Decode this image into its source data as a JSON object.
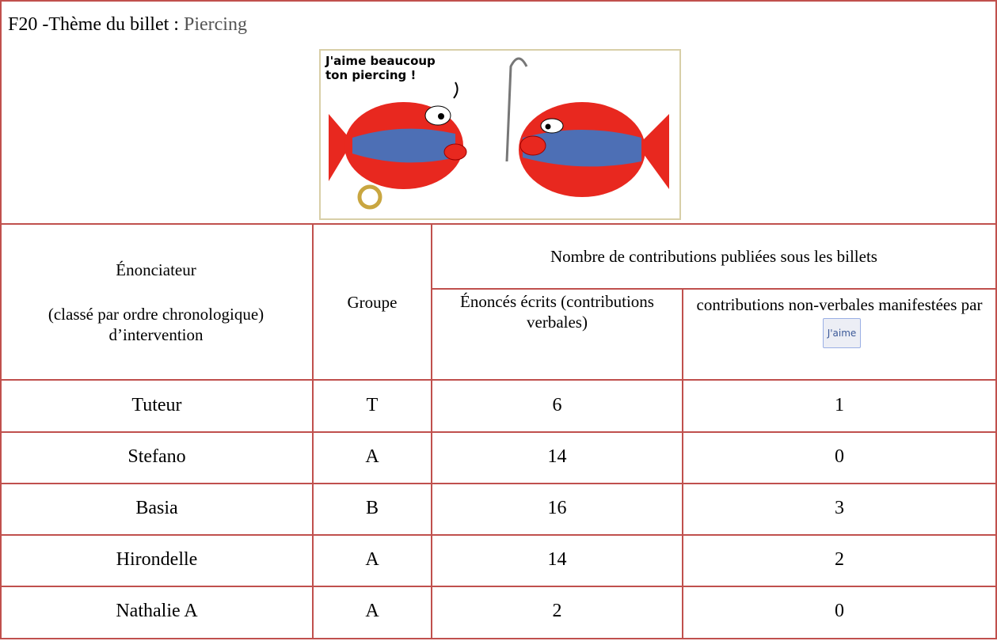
{
  "header": {
    "label": "F20 -Thème du billet :",
    "topic": "Piercing"
  },
  "image": {
    "caption": "J'aime beaucoup ton piercing !"
  },
  "table": {
    "headers": {
      "speaker": "Énonciateur",
      "speaker_note": "(classé par ordre chronologique) d’intervention",
      "group": "Groupe",
      "contributions": "Nombre de contributions publiées sous les billets",
      "verbal": "Énoncés écrits (contributions verbales)",
      "nonverbal": "contributions non-verbales manifestées par",
      "like_button": "J'aime"
    },
    "rows": [
      [
        "Tuteur",
        "T",
        6,
        1
      ],
      [
        "Stefano",
        "A",
        14,
        0
      ],
      [
        "Basia",
        "B",
        16,
        3
      ],
      [
        "Hirondelle",
        "A",
        14,
        2
      ],
      [
        "Nathalie A",
        "A",
        2,
        0
      ]
    ]
  }
}
